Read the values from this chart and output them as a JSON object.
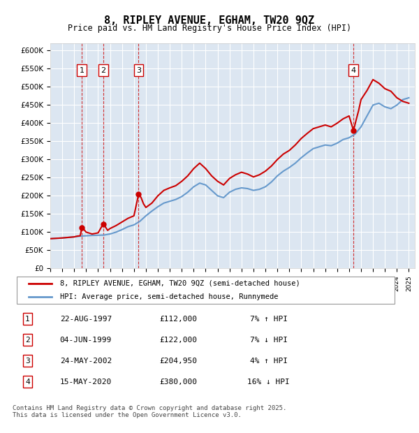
{
  "title": "8, RIPLEY AVENUE, EGHAM, TW20 9QZ",
  "subtitle": "Price paid vs. HM Land Registry's House Price Index (HPI)",
  "ylim": [
    0,
    620000
  ],
  "yticks": [
    0,
    50000,
    100000,
    150000,
    200000,
    250000,
    300000,
    350000,
    400000,
    450000,
    500000,
    550000,
    600000
  ],
  "ytick_labels": [
    "£0",
    "£50K",
    "£100K",
    "£150K",
    "£200K",
    "£250K",
    "£300K",
    "£350K",
    "£400K",
    "£450K",
    "£500K",
    "£550K",
    "£600K"
  ],
  "bg_color": "#dce6f1",
  "plot_bg": "#dce6f1",
  "red_color": "#cc0000",
  "blue_color": "#6699cc",
  "sale_dates": [
    1997.64,
    1999.42,
    2002.39,
    2020.37
  ],
  "sale_prices": [
    112000,
    122000,
    204950,
    380000
  ],
  "sale_labels": [
    "1",
    "2",
    "3",
    "4"
  ],
  "legend_line1": "8, RIPLEY AVENUE, EGHAM, TW20 9QZ (semi-detached house)",
  "legend_line2": "HPI: Average price, semi-detached house, Runnymede",
  "table_data": [
    [
      "1",
      "22-AUG-1997",
      "£112,000",
      "7% ↑ HPI"
    ],
    [
      "2",
      "04-JUN-1999",
      "£122,000",
      "7% ↓ HPI"
    ],
    [
      "3",
      "24-MAY-2002",
      "£204,950",
      "4% ↑ HPI"
    ],
    [
      "4",
      "15-MAY-2020",
      "£380,000",
      "16% ↓ HPI"
    ]
  ],
  "footer": "Contains HM Land Registry data © Crown copyright and database right 2025.\nThis data is licensed under the Open Government Licence v3.0.",
  "hpi_years": [
    1995,
    1995.5,
    1996,
    1996.5,
    1997,
    1997.5,
    1998,
    1998.5,
    1999,
    1999.5,
    2000,
    2000.5,
    2001,
    2001.5,
    2002,
    2002.5,
    2003,
    2003.5,
    2004,
    2004.5,
    2005,
    2005.5,
    2006,
    2006.5,
    2007,
    2007.5,
    2008,
    2008.5,
    2009,
    2009.5,
    2010,
    2010.5,
    2011,
    2011.5,
    2012,
    2012.5,
    2013,
    2013.5,
    2014,
    2014.5,
    2015,
    2015.5,
    2016,
    2016.5,
    2017,
    2017.5,
    2018,
    2018.5,
    2019,
    2019.5,
    2020,
    2020.5,
    2021,
    2021.5,
    2022,
    2022.5,
    2023,
    2023.5,
    2024,
    2024.5,
    2025
  ],
  "hpi_values": [
    82000,
    83000,
    84000,
    85500,
    87000,
    89000,
    90000,
    91000,
    91500,
    92000,
    95000,
    100000,
    107000,
    115000,
    120000,
    130000,
    145000,
    158000,
    170000,
    180000,
    185000,
    190000,
    198000,
    210000,
    225000,
    235000,
    230000,
    215000,
    200000,
    195000,
    210000,
    218000,
    222000,
    220000,
    215000,
    218000,
    225000,
    238000,
    255000,
    268000,
    278000,
    290000,
    305000,
    318000,
    330000,
    335000,
    340000,
    338000,
    345000,
    355000,
    360000,
    370000,
    390000,
    420000,
    450000,
    455000,
    445000,
    440000,
    450000,
    465000,
    470000
  ],
  "price_years": [
    1995,
    1995.5,
    1996,
    1996.5,
    1997,
    1997.25,
    1997.5,
    1997.64,
    1997.8,
    1998,
    1998.5,
    1999,
    1999.42,
    1999.6,
    1999.8,
    2000,
    2000.5,
    2001,
    2001.5,
    2002,
    2002.39,
    2002.6,
    2002.8,
    2003,
    2003.5,
    2004,
    2004.5,
    2005,
    2005.5,
    2006,
    2006.5,
    2007,
    2007.5,
    2008,
    2008.5,
    2009,
    2009.5,
    2010,
    2010.5,
    2011,
    2011.5,
    2012,
    2012.5,
    2013,
    2013.5,
    2014,
    2014.5,
    2015,
    2015.5,
    2016,
    2016.5,
    2017,
    2017.5,
    2018,
    2018.5,
    2019,
    2019.5,
    2020,
    2020.37,
    2020.6,
    2020.8,
    2021,
    2021.5,
    2022,
    2022.5,
    2023,
    2023.5,
    2024,
    2024.5,
    2025
  ],
  "price_values": [
    82000,
    83000,
    84000,
    85500,
    87000,
    89000,
    90000,
    112000,
    108000,
    100000,
    95000,
    98000,
    122000,
    115000,
    105000,
    110000,
    118000,
    128000,
    138000,
    145000,
    204950,
    195000,
    178000,
    168000,
    180000,
    200000,
    215000,
    222000,
    228000,
    240000,
    255000,
    275000,
    290000,
    275000,
    255000,
    240000,
    230000,
    248000,
    258000,
    265000,
    260000,
    252000,
    258000,
    268000,
    282000,
    300000,
    315000,
    325000,
    340000,
    358000,
    372000,
    385000,
    390000,
    395000,
    390000,
    400000,
    412000,
    420000,
    380000,
    410000,
    435000,
    465000,
    490000,
    520000,
    510000,
    495000,
    488000,
    470000,
    460000,
    455000
  ]
}
